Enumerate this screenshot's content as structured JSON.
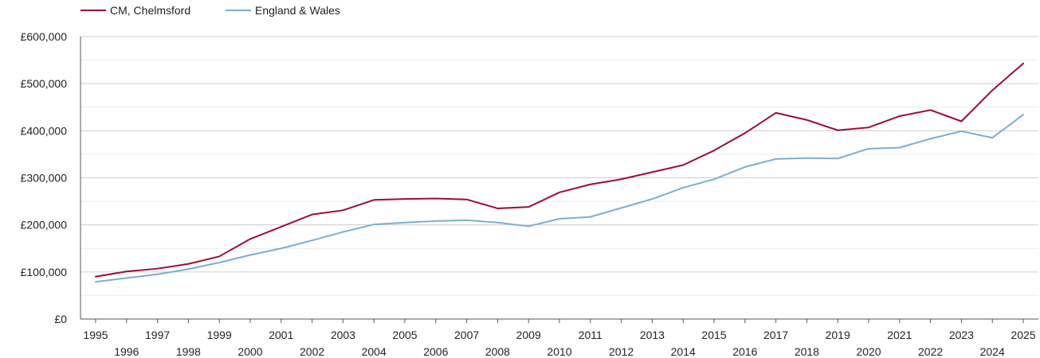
{
  "chart_data": {
    "type": "line",
    "title": "",
    "xlabel": "",
    "ylabel": "",
    "x": [
      1995,
      1996,
      1997,
      1998,
      1999,
      2000,
      2001,
      2002,
      2003,
      2004,
      2005,
      2006,
      2007,
      2008,
      2009,
      2010,
      2011,
      2012,
      2013,
      2014,
      2015,
      2016,
      2017,
      2018,
      2019,
      2020,
      2021,
      2022,
      2023,
      2024,
      2025
    ],
    "xlim": [
      1995,
      2025
    ],
    "ylim": [
      0,
      600000
    ],
    "y_ticks": [
      0,
      100000,
      200000,
      300000,
      400000,
      500000,
      600000
    ],
    "y_tick_labels": [
      "£0",
      "£100,000",
      "£200,000",
      "£300,000",
      "£400,000",
      "£500,000",
      "£600,000"
    ],
    "grid": true,
    "legend_position": "top-left",
    "series": [
      {
        "name": "CM, Chelmsford",
        "color": "#9b0d34",
        "values": [
          90000,
          101000,
          107000,
          117000,
          133000,
          170000,
          196000,
          222000,
          231000,
          253000,
          255000,
          256000,
          254000,
          235000,
          238000,
          269000,
          286000,
          297000,
          312000,
          327000,
          358000,
          395000,
          438000,
          423000,
          401000,
          407000,
          431000,
          444000,
          420000,
          486000,
          543000
        ]
      },
      {
        "name": "England & Wales",
        "color": "#7aaed0",
        "values": [
          79000,
          87000,
          95000,
          106000,
          120000,
          136000,
          150000,
          167000,
          185000,
          201000,
          205000,
          208000,
          210000,
          205000,
          197000,
          213000,
          217000,
          236000,
          255000,
          279000,
          297000,
          323000,
          340000,
          342000,
          341000,
          362000,
          364000,
          383000,
          399000,
          385000,
          434000
        ]
      }
    ]
  }
}
